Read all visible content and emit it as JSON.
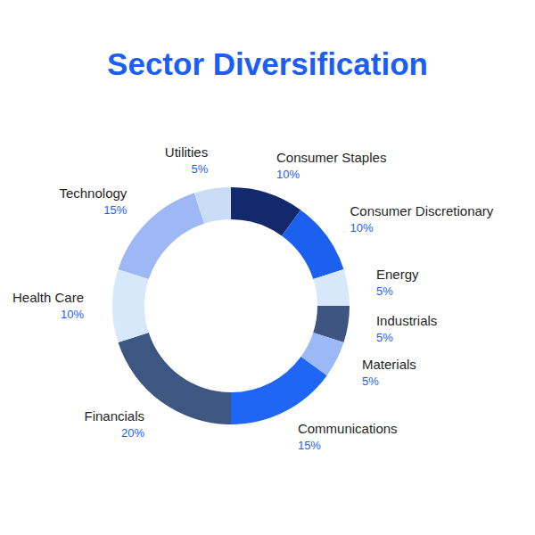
{
  "chart_data": {
    "type": "donut",
    "title": "Sector Diversification",
    "categories": [
      "Consumer Staples",
      "Consumer Discretionary",
      "Energy",
      "Industrials",
      "Materials",
      "Communications",
      "Financials",
      "Health Care",
      "Technology",
      "Utilities"
    ],
    "values": [
      10,
      10,
      5,
      5,
      5,
      15,
      20,
      10,
      15,
      5
    ],
    "value_labels": [
      "10%",
      "10%",
      "5%",
      "5%",
      "5%",
      "15%",
      "20%",
      "10%",
      "15%",
      "5%"
    ],
    "colors": [
      "#13296b",
      "#1c60f0",
      "#d7e8fb",
      "#3d5580",
      "#9bb9f6",
      "#1f66f5",
      "#3e5682",
      "#d7e8fb",
      "#9db8f5",
      "#c9ddf7"
    ],
    "data_labels": true
  }
}
